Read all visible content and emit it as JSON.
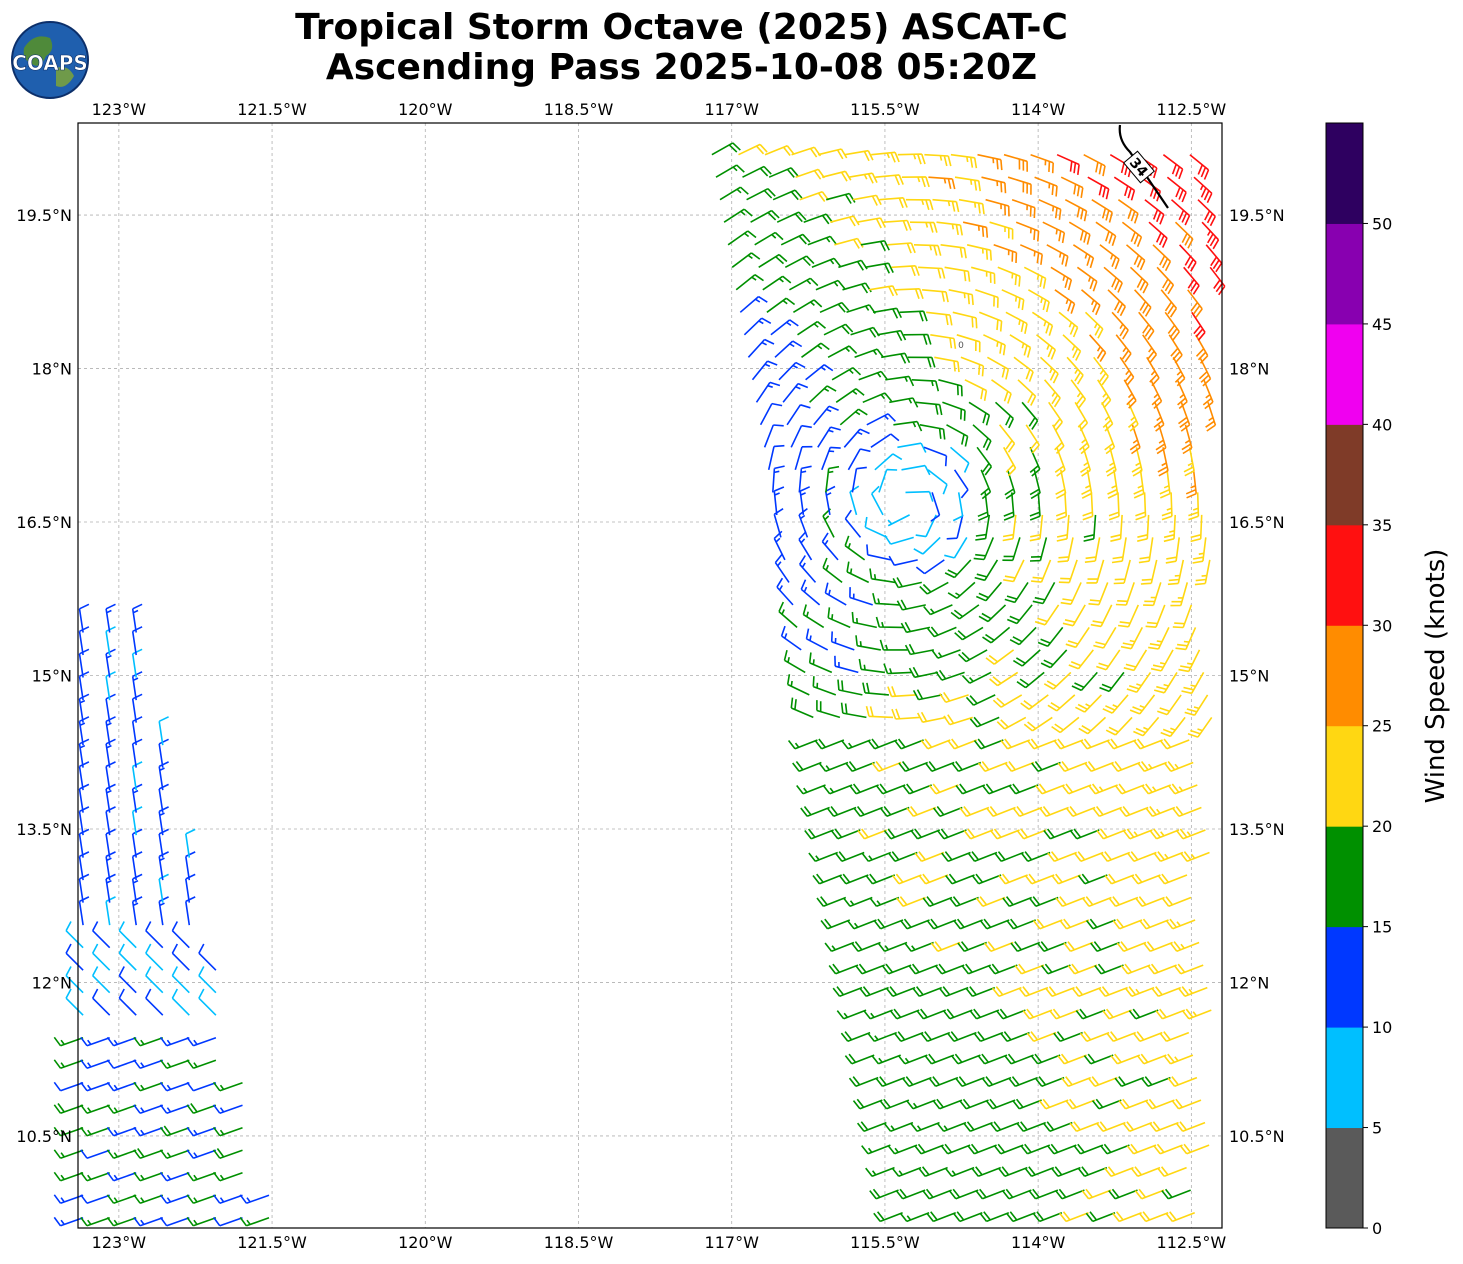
{
  "title": {
    "line1": "Tropical Storm Octave (2025) ASCAT-C",
    "line2": "Ascending Pass 2025-10-08 05:20Z"
  },
  "logo": {
    "text": "COAPS",
    "icon": "globe-logo-icon"
  },
  "map": {
    "lon_range": [
      -123.4,
      -112.2
    ],
    "lat_range": [
      9.6,
      20.4
    ],
    "lon_ticks": [
      "123°W",
      "121.5°W",
      "120°W",
      "118.5°W",
      "117°W",
      "115.5°W",
      "114°W",
      "112.5°W"
    ],
    "lon_tick_values": [
      -123,
      -121.5,
      -120,
      -118.5,
      -117,
      -115.5,
      -114,
      -112.5
    ],
    "lat_ticks": [
      "10.5°N",
      "12°N",
      "13.5°N",
      "15°N",
      "16.5°N",
      "18°N",
      "19.5°N"
    ],
    "lat_tick_values": [
      10.5,
      12,
      13.5,
      15,
      16.5,
      18,
      19.5
    ],
    "gridlines": true,
    "contour_label": "34",
    "contour_small_label": "0"
  },
  "colorbar": {
    "label": "Wind Speed (knots)",
    "ticks": [
      "0",
      "5",
      "10",
      "15",
      "20",
      "25",
      "30",
      "35",
      "40",
      "45",
      "50"
    ],
    "bins": [
      {
        "min": 0,
        "max": 5,
        "color": "#5a5a5a"
      },
      {
        "min": 5,
        "max": 10,
        "color": "#00bfff"
      },
      {
        "min": 10,
        "max": 15,
        "color": "#0038ff"
      },
      {
        "min": 15,
        "max": 20,
        "color": "#009000"
      },
      {
        "min": 20,
        "max": 25,
        "color": "#ffd712"
      },
      {
        "min": 25,
        "max": 30,
        "color": "#ff8c00"
      },
      {
        "min": 30,
        "max": 35,
        "color": "#ff1010"
      },
      {
        "min": 35,
        "max": 40,
        "color": "#7f3b28"
      },
      {
        "min": 40,
        "max": 45,
        "color": "#f000f0"
      },
      {
        "min": 45,
        "max": 50,
        "color": "#8800b0"
      },
      {
        "min": 50,
        "max": 55,
        "color": "#2e0060"
      }
    ]
  },
  "swaths": [
    {
      "name": "west-swath",
      "lat_range": [
        9.6,
        15.6
      ],
      "lon_edges": [
        -123.4,
        -122.8,
        -123.4,
        -121.4
      ]
    },
    {
      "name": "east-swath",
      "lat_range": [
        9.6,
        20.4
      ],
      "lon_edges": [
        -117.2,
        -112.2,
        -115.3,
        -112.2
      ]
    }
  ]
}
